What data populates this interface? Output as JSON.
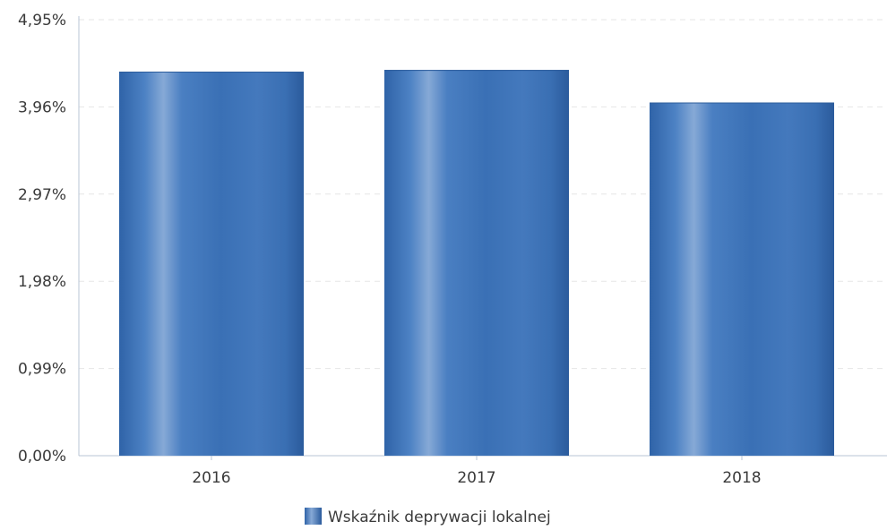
{
  "chart_data": {
    "type": "bar",
    "categories": [
      "2016",
      "2017",
      "2018"
    ],
    "series": [
      {
        "name": "Wskaźnik deprywacji lokalnej",
        "values": [
          4.36,
          4.38,
          4.01
        ]
      }
    ],
    "ylim": [
      0,
      4.95
    ],
    "y_ticks": [
      0,
      0.99,
      1.98,
      2.97,
      3.96,
      4.95
    ],
    "y_tick_labels": [
      "0,00%",
      "0,99%",
      "1,98%",
      "2,97%",
      "3,96%",
      "4,95%"
    ],
    "grid": true,
    "legend_position": "bottom-center",
    "colors": {
      "bar": "#3f74b8",
      "bar_highlight": "#8fb1dc",
      "bar_shadow": "#2d5d9c",
      "grid": "#e6e6e6",
      "axis": "#b8c4d4"
    }
  }
}
